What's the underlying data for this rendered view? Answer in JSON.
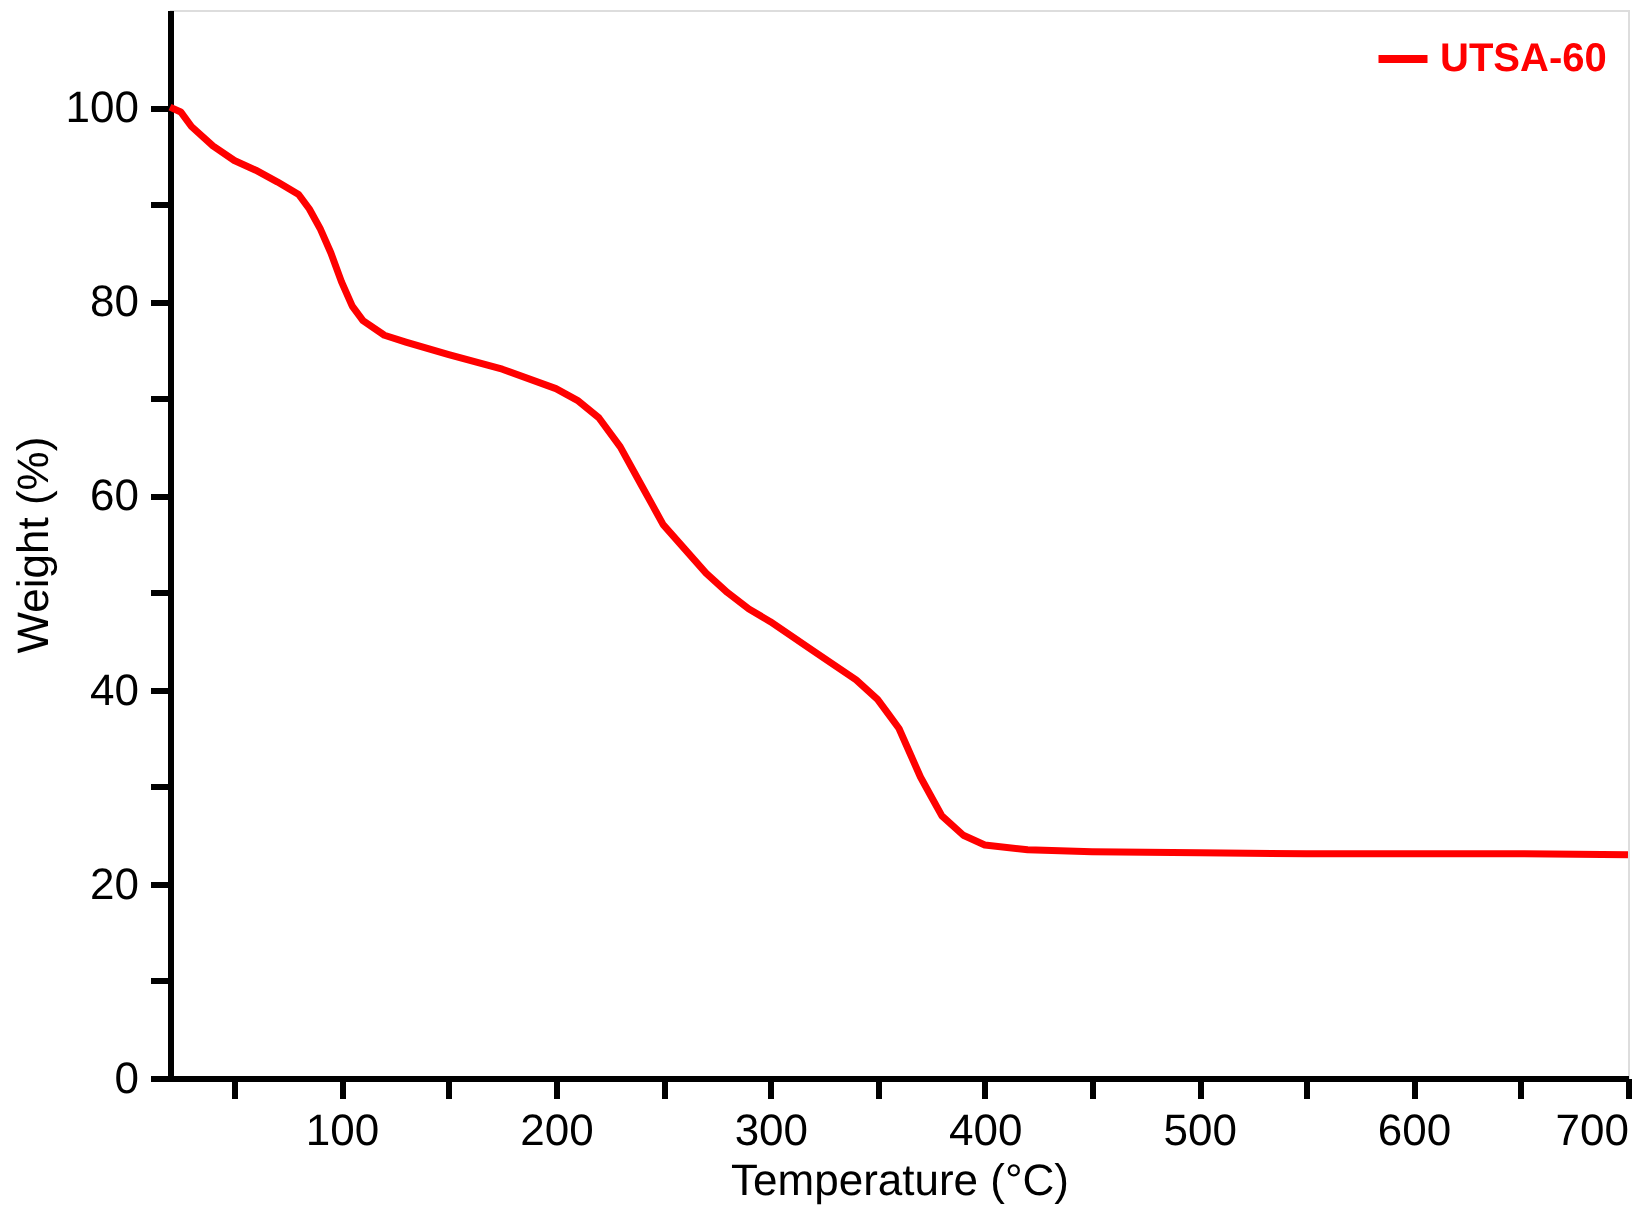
{
  "chart_data": {
    "type": "line",
    "xlabel": "Temperature (°C)",
    "ylabel": "Weight (%)",
    "xlim": [
      20,
      700
    ],
    "ylim": [
      0,
      110
    ],
    "xticks": [
      {
        "value": 50,
        "label": null
      },
      100,
      {
        "value": 150,
        "label": null
      },
      200,
      {
        "value": 250,
        "label": null
      },
      300,
      {
        "value": 350,
        "label": null
      },
      400,
      {
        "value": 450,
        "label": null
      },
      500,
      {
        "value": 550,
        "label": null
      },
      600,
      {
        "value": 650,
        "label": null
      },
      700
    ],
    "yticks": [
      0,
      {
        "value": 10,
        "label": null
      },
      20,
      {
        "value": 30,
        "label": null
      },
      40,
      {
        "value": 50,
        "label": null
      },
      60,
      {
        "value": 70,
        "label": null
      },
      80,
      {
        "value": 90,
        "label": null
      },
      100
    ],
    "grid": false,
    "legend": "top right",
    "line_style": "solid",
    "marker": "none",
    "series": [
      {
        "name": "UTSA-60",
        "color": "#ff0000",
        "x": [
          20,
          25,
          30,
          40,
          50,
          60,
          70,
          80,
          85,
          90,
          95,
          100,
          105,
          110,
          120,
          130,
          150,
          175,
          200,
          210,
          220,
          230,
          240,
          245,
          250,
          260,
          270,
          280,
          290,
          300,
          320,
          340,
          350,
          355,
          360,
          365,
          370,
          375,
          380,
          390,
          400,
          420,
          450,
          500,
          550,
          600,
          650,
          700
        ],
        "values": [
          100,
          99.5,
          98,
          96,
          94.5,
          93.5,
          92.3,
          91,
          89.5,
          87.5,
          85,
          82,
          79.5,
          78,
          76.5,
          75.8,
          74.5,
          73,
          71,
          69.8,
          68,
          65,
          61,
          59,
          57,
          54.5,
          52,
          50,
          48.3,
          47,
          44,
          41,
          39,
          37.5,
          36,
          33.5,
          31,
          29,
          27,
          25,
          24,
          23.5,
          23.3,
          23.2,
          23.1,
          23.1,
          23.1,
          23
        ]
      }
    ]
  }
}
